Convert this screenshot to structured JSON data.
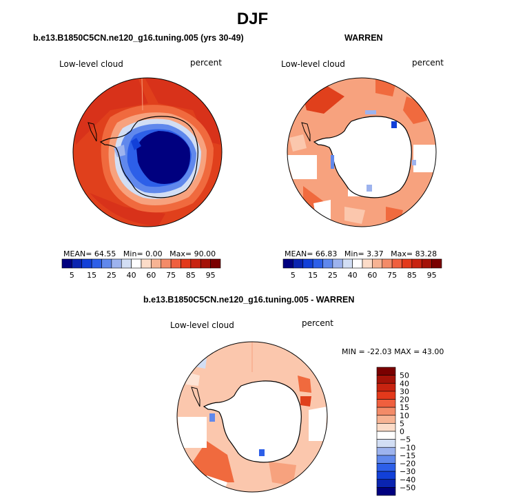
{
  "page": {
    "title": "DJF",
    "variable_label": "Low-level cloud",
    "units_label": "percent"
  },
  "panels": [
    {
      "id": "model",
      "title": "b.e13.B1850C5CN.ne120_g16.tuning.005 (yrs 30-49)",
      "variable_label": "Low-level cloud",
      "units_label": "percent",
      "stats": {
        "mean_label": "MEAN=",
        "mean": "64.55",
        "min_label": "Min=",
        "min": "0.00",
        "max_label": "Max=",
        "max": "90.00"
      }
    },
    {
      "id": "obs",
      "title": "WARREN",
      "variable_label": "Low-level cloud",
      "units_label": "percent",
      "stats": {
        "mean_label": "MEAN=",
        "mean": "66.83",
        "min_label": "Min=",
        "min": "3.37",
        "max_label": "Max=",
        "max": "83.28"
      }
    },
    {
      "id": "diff",
      "title": "b.e13.B1850C5CN.ne120_g16.tuning.005 - WARREN",
      "variable_label": "Low-level cloud",
      "units_label": "percent",
      "stats_line": "MIN = -22.03 MAX = 43.00"
    }
  ],
  "colorbar_abs": {
    "orientation": "horizontal",
    "tick_labels": [
      "5",
      "15",
      "25",
      "40",
      "60",
      "75",
      "85",
      "95"
    ],
    "colors": [
      "#00007f",
      "#0a24b0",
      "#1240d8",
      "#2d5fe8",
      "#6088ec",
      "#9db3ee",
      "#d2def4",
      "#ffffff",
      "#fcdcc8",
      "#f7b393",
      "#f38b68",
      "#ef5f3e",
      "#e3391b",
      "#c82310",
      "#a41208",
      "#7a0000"
    ]
  },
  "colorbar_diff": {
    "orientation": "vertical",
    "tick_labels": [
      "50",
      "40",
      "30",
      "20",
      "15",
      "10",
      "5",
      "0",
      "−5",
      "−10",
      "−15",
      "−20",
      "−30",
      "−40",
      "−50"
    ],
    "colors": [
      "#7a0000",
      "#a41208",
      "#c82310",
      "#e3391b",
      "#ef5f3e",
      "#f38b68",
      "#f7b393",
      "#fcdcc8",
      "#ffffff",
      "#d2def4",
      "#9db3ee",
      "#6088ec",
      "#2d5fe8",
      "#1240d8",
      "#0a24b0",
      "#00007f"
    ]
  },
  "map_colors": {
    "deep_red": "#d8321a",
    "red": "#e4461f",
    "orange_red": "#f06a3e",
    "salmon": "#f7a27e",
    "light_salmon": "#fbc7ad",
    "pale": "#fde4d6",
    "navy": "#00007f",
    "blue": "#1e48d8",
    "light_blue": "#9db3ee",
    "land_white": "#ffffff"
  }
}
